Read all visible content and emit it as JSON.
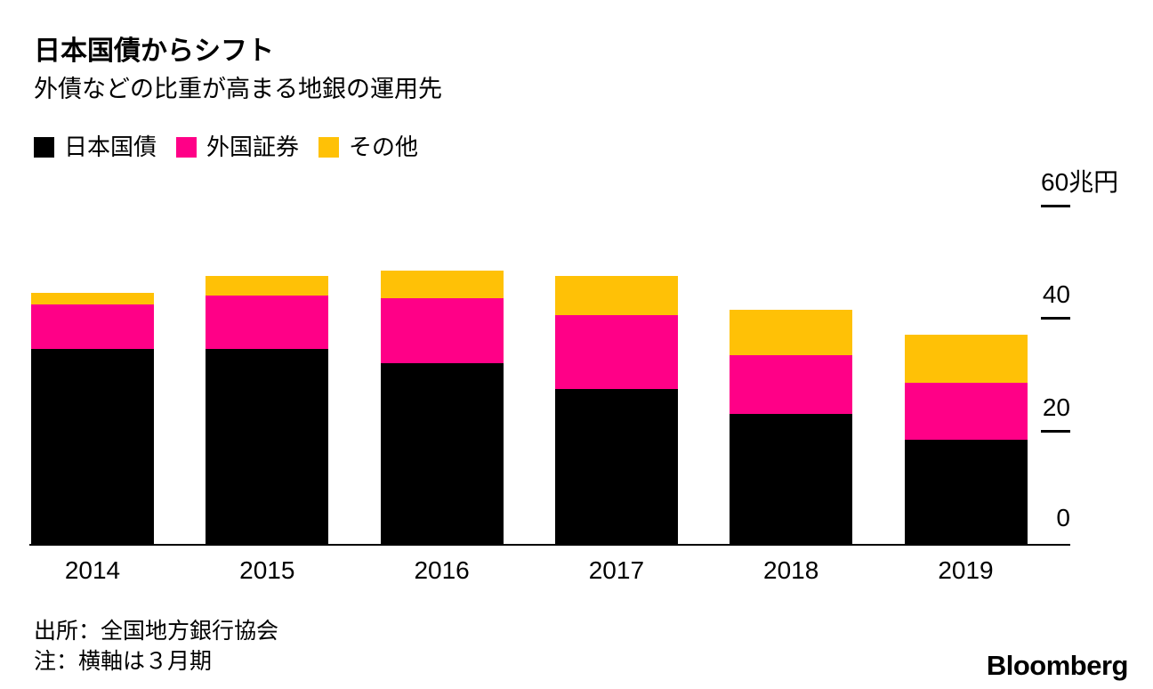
{
  "header": {
    "title": "日本国債からシフト",
    "subtitle": "外債などの比重が高まる地銀の運用先"
  },
  "legend": [
    {
      "label": "日本国債",
      "color": "#000000"
    },
    {
      "label": "外国証券",
      "color": "#ff0087"
    },
    {
      "label": "その他",
      "color": "#ffc106"
    }
  ],
  "chart_data": {
    "type": "bar",
    "stacked": true,
    "title": "日本国債からシフト",
    "subtitle": "外債などの比重が高まる地銀の運用先",
    "categories": [
      "2014",
      "2015",
      "2016",
      "2017",
      "2018",
      "2019"
    ],
    "series": [
      {
        "name": "日本国債",
        "color": "#000000",
        "values": [
          34.5,
          34.5,
          32.0,
          27.5,
          23.0,
          18.5
        ]
      },
      {
        "name": "外国証券",
        "color": "#ff0087",
        "values": [
          8.0,
          9.5,
          11.5,
          13.0,
          10.5,
          10.0
        ]
      },
      {
        "name": "その他",
        "color": "#ffc106",
        "values": [
          2.0,
          3.5,
          5.0,
          7.0,
          8.0,
          8.5
        ]
      }
    ],
    "unit": "兆円",
    "ylim": [
      0,
      60
    ],
    "yticks": [
      {
        "value": 60,
        "label": "60",
        "unit": "兆円"
      },
      {
        "value": 40,
        "label": "40"
      },
      {
        "value": 20,
        "label": "20"
      },
      {
        "value": 0,
        "label": "0"
      }
    ],
    "grid": false,
    "legend_position": "top"
  },
  "footer": {
    "source": "出所：全国地方銀行協会",
    "note": "注：横軸は３月期",
    "brand": "Bloomberg"
  }
}
